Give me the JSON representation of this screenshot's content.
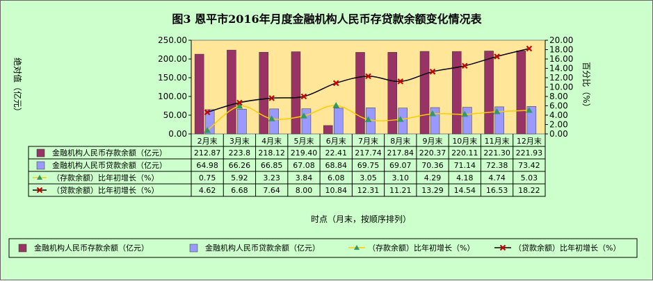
{
  "chart_data": {
    "type": "bar",
    "title": "图3    恩平市2016年月度金融机构人民币存贷款余额变化情况表",
    "xlabel": "时点（月末，按顺序排列）",
    "ylabel_left": "绝对值（亿元）",
    "ylabel_right": "百分比（%）",
    "categories": [
      "2月末",
      "3月末",
      "4月末",
      "5月末",
      "6月末",
      "7月末",
      "8月末",
      "9月末",
      "10月末",
      "11月末",
      "12月末"
    ],
    "y_left": {
      "min": 0,
      "max": 250,
      "ticks": [
        "0.00",
        "50.00",
        "100.00",
        "150.00",
        "200.00",
        "250.00"
      ]
    },
    "y_right": {
      "min": 0,
      "max": 20,
      "ticks": [
        "0.00",
        "2.00",
        "4.00",
        "6.00",
        "8.00",
        "10.00",
        "12.00",
        "14.00",
        "16.00",
        "18.00",
        "20.00"
      ]
    },
    "grid": false,
    "legend_position": "bottom",
    "series": [
      {
        "name": "金融机构人民币存款余额（亿元）",
        "type": "bar",
        "axis": "left",
        "color": "#993366",
        "values": [
          212.87,
          223.8,
          218.12,
          219.4,
          22.41,
          217.74,
          217.84,
          220.37,
          220.11,
          221.3,
          221.93
        ],
        "labels": [
          "212.87",
          "223.8",
          "218.12",
          "219.40",
          "22.41",
          "217.74",
          "217.84",
          "220.37",
          "220.11",
          "221.30",
          "221.93"
        ]
      },
      {
        "name": "金融机构人民币贷款余额（亿元）",
        "type": "bar",
        "axis": "left",
        "color": "#9999ff",
        "values": [
          64.98,
          66.26,
          66.85,
          67.08,
          68.84,
          69.75,
          69.07,
          70.36,
          71.14,
          72.38,
          73.42
        ],
        "labels": [
          "64.98",
          "66.26",
          "66.85",
          "67.08",
          "68.84",
          "69.75",
          "69.07",
          "70.36",
          "71.14",
          "72.38",
          "73.42"
        ]
      },
      {
        "name": "（存款余额）比年初增长（%）",
        "type": "line",
        "axis": "right",
        "color": "#ffcc00",
        "marker_color": "#339966",
        "values": [
          0.75,
          5.92,
          3.23,
          3.84,
          6.08,
          3.05,
          3.1,
          4.29,
          4.18,
          4.74,
          5.03
        ],
        "labels": [
          "0.75",
          "5.92",
          "3.23",
          "3.84",
          "6.08",
          "3.05",
          "3.10",
          "4.29",
          "4.18",
          "4.74",
          "5.03"
        ]
      },
      {
        "name": "（贷款余额）比年初增长（%）",
        "type": "line",
        "axis": "right",
        "color": "#000000",
        "marker_color": "#cc0000",
        "values": [
          4.62,
          6.68,
          7.64,
          8.0,
          10.84,
          12.31,
          11.21,
          13.29,
          14.54,
          16.53,
          18.22
        ],
        "labels": [
          "4.62",
          "6.68",
          "7.64",
          "8.00",
          "10.84",
          "12.31",
          "11.21",
          "13.29",
          "14.54",
          "16.53",
          "18.22"
        ]
      }
    ],
    "legend": [
      "金融机构人民币存款余额（亿元）",
      "金融机构人民币贷款余额（亿元）",
      "（存款余额）比年初增长（%）",
      "（贷款余额）比年初增长（%）"
    ]
  },
  "colors": {
    "plot_bg": "#ffe699",
    "frame_bg": "#ccffcc"
  }
}
